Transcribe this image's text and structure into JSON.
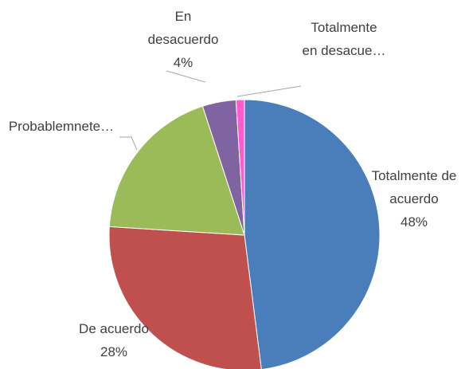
{
  "chart_data": {
    "type": "pie",
    "categories": [
      "Totalmente de acuerdo",
      "De acuerdo",
      "Probablemnete…",
      "En desacuerdo",
      "Totalmente en desacue…"
    ],
    "values": [
      48,
      28,
      19,
      4,
      1
    ],
    "value_labels": [
      "48%",
      "28%",
      null,
      "4%",
      null
    ],
    "colors": [
      "#4a7ebb",
      "#c0504d",
      "#9bbb59",
      "#8064a2",
      "#ff5bd1"
    ]
  }
}
